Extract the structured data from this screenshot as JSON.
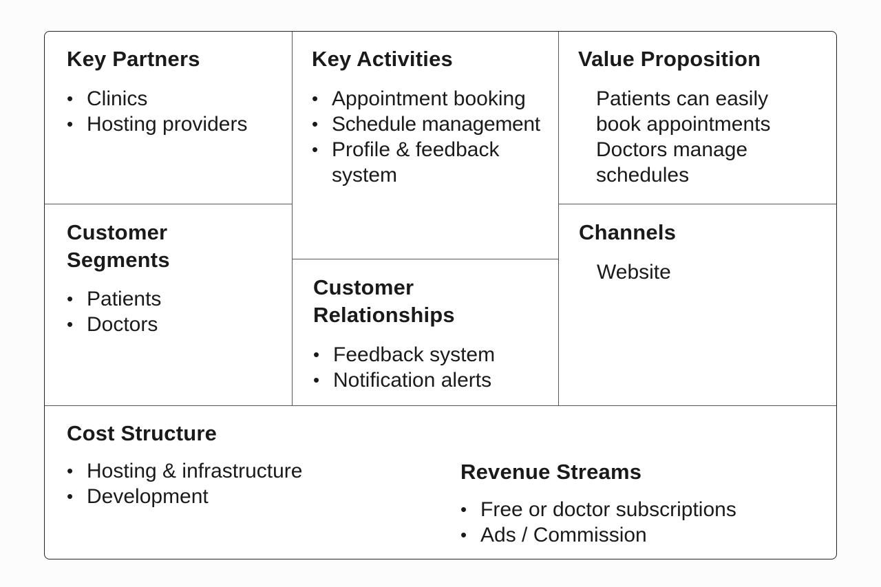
{
  "key_partners": {
    "title": "Key Partners",
    "items": [
      "Clinics",
      "Hosting providers"
    ]
  },
  "key_activities": {
    "title": "Key Activities",
    "items": [
      "Appointment booking",
      "Schedule management",
      "Profile & feedback system"
    ]
  },
  "value_proposition": {
    "title": "Value Proposition",
    "lines": [
      "Patients can easily",
      "book appointments",
      "Doctors manage",
      "schedules"
    ]
  },
  "customer_segments": {
    "title_lines": [
      "Customer",
      "Segments"
    ],
    "items": [
      "Patients",
      "Doctors"
    ]
  },
  "customer_relationships": {
    "title_lines": [
      "Customer",
      "Relationships"
    ],
    "items": [
      "Feedback system",
      "Notification alerts"
    ]
  },
  "channels": {
    "title": "Channels",
    "lines": [
      "Website"
    ]
  },
  "cost_structure": {
    "title": "Cost Structure",
    "items": [
      "Hosting & infrastructure",
      "Development"
    ]
  },
  "revenue_streams": {
    "title": "Revenue Streams",
    "items": [
      "Free or doctor subscriptions",
      "Ads / Commission"
    ]
  }
}
